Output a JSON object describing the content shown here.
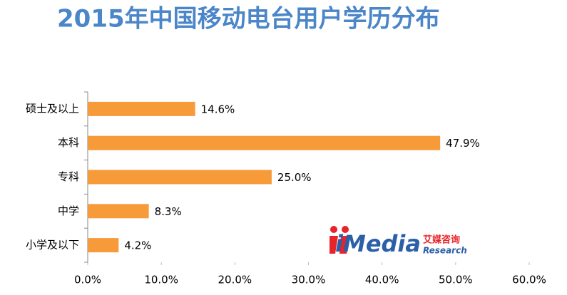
{
  "chart_data": {
    "type": "hbar",
    "title": "2015年中国移动电台用户学历分布",
    "categories": [
      "硕士及以上",
      "本科",
      "专科",
      "中学",
      "小学及以下"
    ],
    "values": [
      14.6,
      47.9,
      25.0,
      8.3,
      4.2
    ],
    "value_labels": [
      "14.6%",
      "47.9%",
      "25.0%",
      "8.3%",
      "4.2%"
    ],
    "color": "#f79a3a",
    "xlim": [
      0,
      60
    ],
    "xticks": [
      {
        "value": 0,
        "label": "0.0%"
      },
      {
        "value": 10,
        "label": "10.0%"
      },
      {
        "value": 20,
        "label": "20.0%"
      },
      {
        "value": 30,
        "label": "30.0%"
      },
      {
        "value": 40,
        "label": "40.0%"
      },
      {
        "value": 50,
        "label": "50.0%"
      },
      {
        "value": 60,
        "label": "60.0%"
      }
    ],
    "grid": false
  },
  "watermark": {
    "brand": "iMedia",
    "cn": "艾媒咨询",
    "en": "Research"
  }
}
